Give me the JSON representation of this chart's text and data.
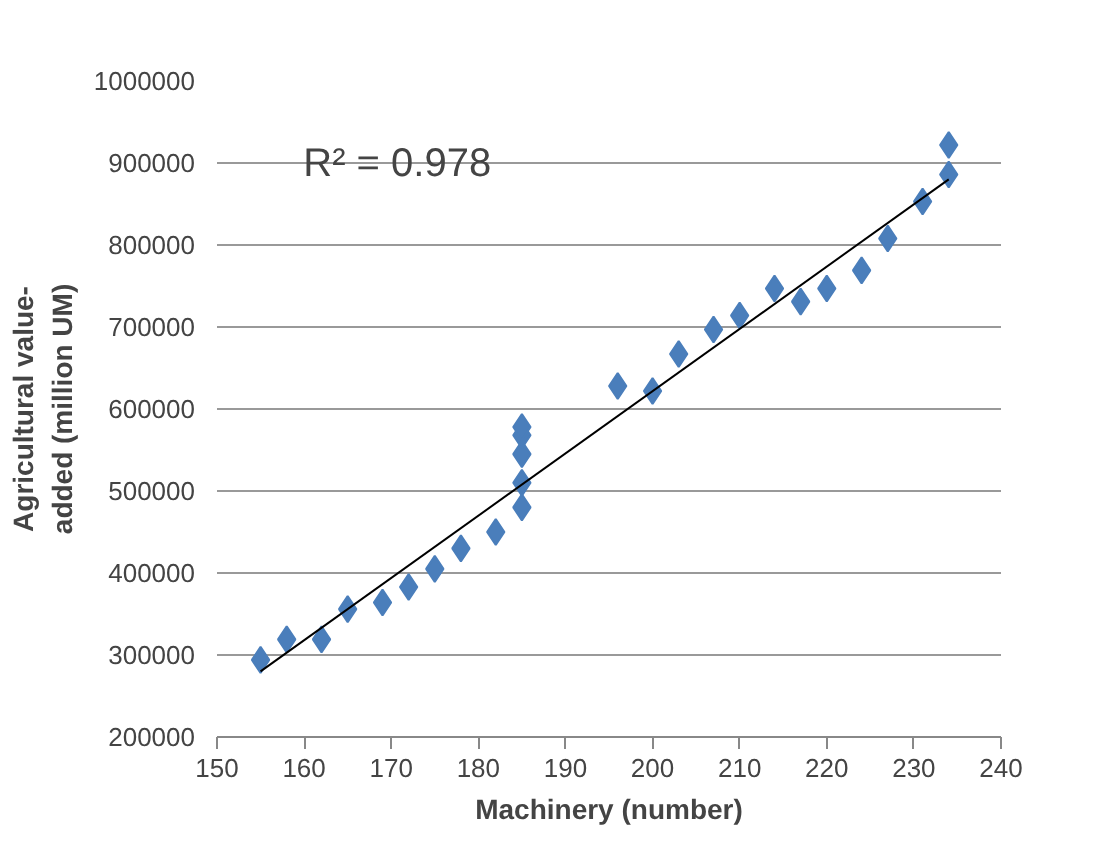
{
  "chart_data": {
    "type": "scatter",
    "xlabel": "Machinery (number)",
    "ylabel": "Agricultural value-\nadded (million UM)",
    "xlim": [
      150,
      240
    ],
    "xticks": [
      150,
      160,
      170,
      180,
      190,
      200,
      210,
      220,
      230,
      240
    ],
    "ylim": [
      200000,
      1000000
    ],
    "yticks": [
      200000,
      300000,
      400000,
      500000,
      600000,
      700000,
      800000,
      900000,
      1000000
    ],
    "grid": "y",
    "annotations": [
      "R² = 0.978"
    ],
    "series": [
      {
        "marker": "diamond",
        "color": "#4a7ebb",
        "x": [
          155,
          158,
          162,
          165,
          169,
          172,
          175,
          178,
          182,
          185,
          185,
          185,
          185,
          185,
          196,
          200,
          203,
          207,
          210,
          214,
          217,
          220,
          224,
          227,
          231,
          234,
          234
        ],
        "values": [
          294000,
          319000,
          319000,
          356000,
          364000,
          383000,
          405000,
          430000,
          450000,
          480000,
          510000,
          545000,
          568000,
          578000,
          628000,
          622000,
          667000,
          697000,
          714000,
          747000,
          731000,
          747000,
          769000,
          808000,
          853000,
          886000,
          922000
        ]
      },
      {
        "type": "line",
        "marker": "none",
        "color": "#000000",
        "x": [
          155,
          234
        ],
        "values": [
          280000,
          880000
        ]
      }
    ]
  }
}
